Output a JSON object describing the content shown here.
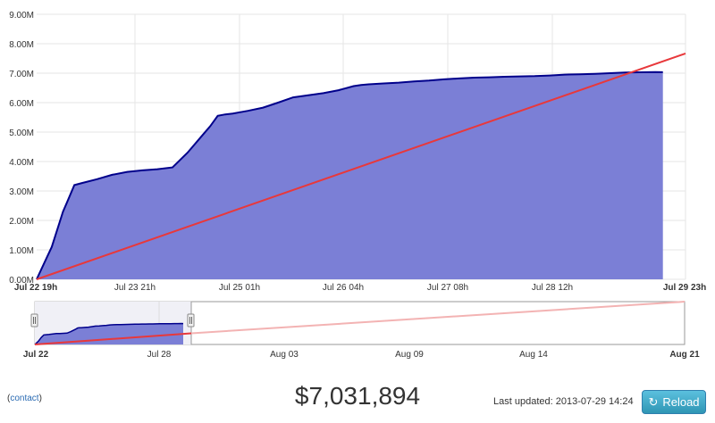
{
  "chart_data": {
    "type": "area",
    "y_ticks": [
      "9.00M",
      "8.00M",
      "7.00M",
      "6.00M",
      "5.00M",
      "4.00M",
      "3.00M",
      "2.00M",
      "1.00M",
      "0.00M"
    ],
    "x_ticks": [
      "Jul 22 19h",
      "Jul 23 21h",
      "Jul 25 01h",
      "Jul 26 04h",
      "Jul 27 08h",
      "Jul 28 12h",
      "Jul 29 23h"
    ],
    "ylim": [
      0,
      9000000
    ],
    "grid": true,
    "series": [
      {
        "kind": "area",
        "color": "#00008b",
        "fill": "#7b7fd6",
        "x_hours": [
          0,
          2,
          4,
          6,
          7,
          8,
          10,
          12,
          16,
          20,
          24,
          28,
          32,
          36,
          40,
          44,
          46,
          48,
          50,
          52,
          56,
          60,
          64,
          68,
          72,
          76,
          80,
          84,
          86,
          88,
          92,
          96,
          100,
          104,
          108,
          112,
          116,
          120,
          124,
          128,
          132,
          136,
          140,
          144,
          148,
          152,
          156,
          160,
          164,
          166
        ],
        "values": [
          0,
          550000,
          1100000,
          1900000,
          2300000,
          2600000,
          3200000,
          3270000,
          3400000,
          3550000,
          3650000,
          3700000,
          3740000,
          3800000,
          4300000,
          4900000,
          5200000,
          5550000,
          5600000,
          5630000,
          5720000,
          5830000,
          6000000,
          6180000,
          6250000,
          6320000,
          6420000,
          6560000,
          6600000,
          6620000,
          6650000,
          6680000,
          6720000,
          6750000,
          6790000,
          6820000,
          6850000,
          6860000,
          6880000,
          6890000,
          6900000,
          6920000,
          6950000,
          6960000,
          6980000,
          7000000,
          7020000,
          7030000,
          7040000,
          7031894
        ]
      },
      {
        "kind": "line",
        "color": "#e8383b",
        "x_hours": [
          0,
          172
        ],
        "values": [
          0,
          7670000
        ]
      }
    ],
    "navigator": {
      "x_ticks": [
        "Jul 22",
        "Jul 28",
        "Aug 03",
        "Aug 09",
        "Aug 14",
        "Aug 21"
      ],
      "area_color": "#7b7fd6",
      "trend_color": "#e8383b"
    }
  },
  "footer": {
    "contact_open": "(",
    "contact_label": "contact",
    "contact_close": ")",
    "total": "$7,031,894",
    "last_updated_label": "Last updated:",
    "last_updated_value": "2013-07-29 14:24",
    "reload_label": "Reload",
    "reload_icon": "refresh-icon"
  }
}
